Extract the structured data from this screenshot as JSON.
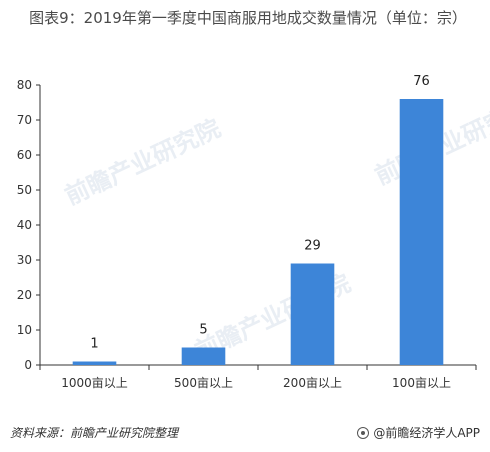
{
  "chart_data": {
    "type": "bar",
    "title": "图表9：2019年第一季度中国商服用地成交数量情况（单位：宗）",
    "categories": [
      "1000亩以上",
      "500亩以上",
      "200亩以上",
      "100亩以上"
    ],
    "values": [
      1,
      5,
      29,
      76
    ],
    "ylim": [
      0,
      80
    ],
    "yticks": [
      0,
      10,
      20,
      30,
      40,
      50,
      60,
      70,
      80
    ],
    "grid": false,
    "bar_color": "#3d85d8"
  },
  "watermark": "前瞻产业研究院",
  "footer": {
    "source": "资料来源：前瞻产业研究院整理",
    "brand": "@前瞻经济学人APP"
  }
}
